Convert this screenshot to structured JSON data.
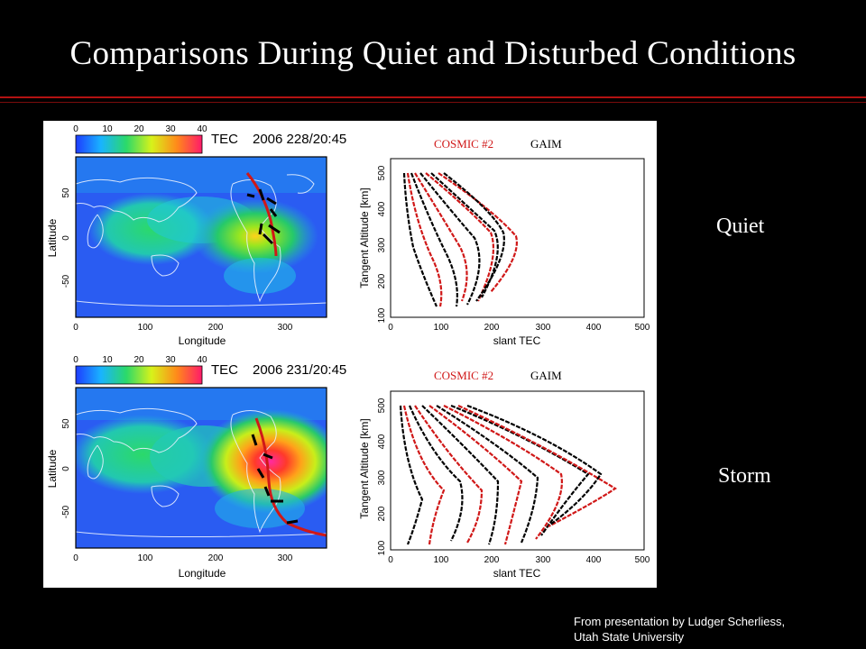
{
  "slide": {
    "title": "Comparisons During Quiet and Disturbed Conditions",
    "credit_line1": "From presentation by Ludger Scherliess,",
    "credit_line2": "Utah State University",
    "accent_color": "#b31212"
  },
  "panels": [
    {
      "condition_label": "Quiet",
      "map": {
        "colorbar_ticks": [
          "0",
          "10",
          "20",
          "30",
          "40"
        ],
        "tec_label": "TEC",
        "date_label": "2006 228/20:45",
        "ylabel": "Latitude",
        "xlabel": "Longitude",
        "y_ticks": [
          "50",
          "0",
          "-50"
        ],
        "x_ticks": [
          "0",
          "100",
          "200",
          "300"
        ]
      },
      "profile": {
        "legend_cosmic": "COSMIC #2",
        "legend_gaim": "GAIM",
        "ylabel": "Tangent Altitude [km]",
        "xlabel": "slant TEC",
        "y_ticks": [
          "100",
          "200",
          "300",
          "400",
          "500"
        ],
        "x_ticks": [
          "0",
          "100",
          "200",
          "300",
          "400",
          "500"
        ]
      }
    },
    {
      "condition_label": "Storm",
      "map": {
        "colorbar_ticks": [
          "0",
          "10",
          "20",
          "30",
          "40"
        ],
        "tec_label": "TEC",
        "date_label": "2006 231/20:45",
        "ylabel": "Latitude",
        "xlabel": "Longitude",
        "y_ticks": [
          "50",
          "0",
          "-50"
        ],
        "x_ticks": [
          "0",
          "100",
          "200",
          "300"
        ]
      },
      "profile": {
        "legend_cosmic": "COSMIC #2",
        "legend_gaim": "GAIM",
        "ylabel": "Tangent Altitude [km]",
        "xlabel": "slant TEC",
        "y_ticks": [
          "100",
          "200",
          "300",
          "400",
          "500"
        ],
        "x_ticks": [
          "0",
          "100",
          "200",
          "300",
          "400",
          "500"
        ]
      }
    }
  ]
}
